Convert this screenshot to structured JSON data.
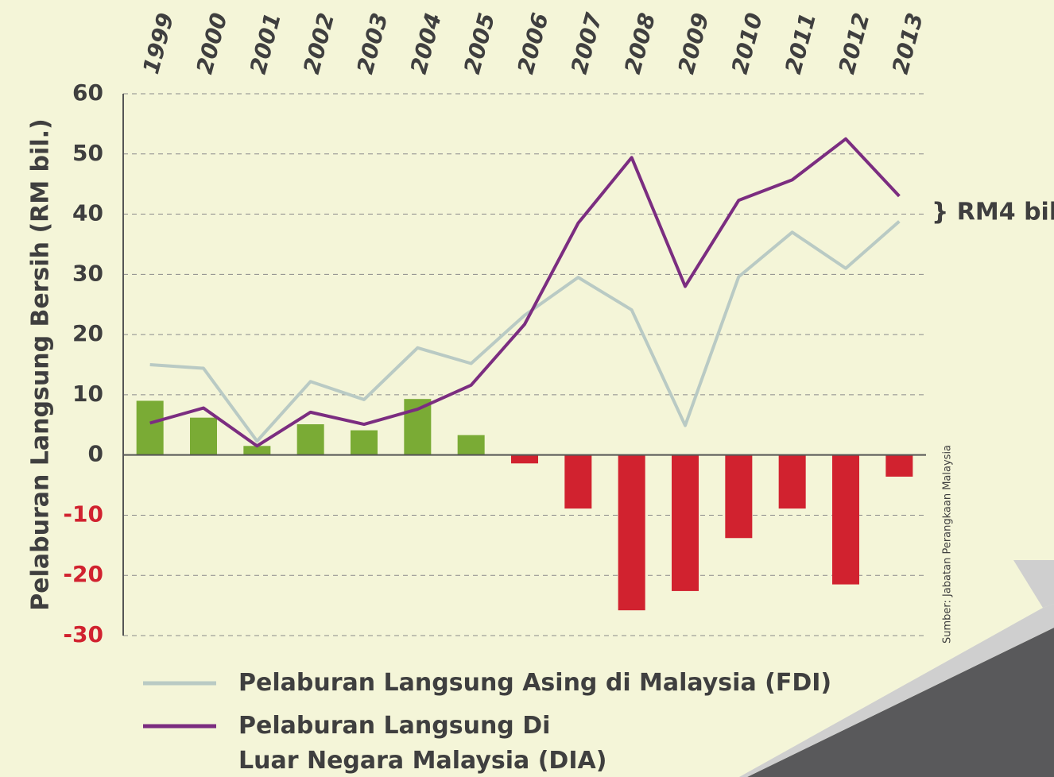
{
  "chart_data": {
    "type": "bar_line",
    "y_axis_label": "Pelaburan Langsung Bersih (RM bil.)",
    "annotation": "} RM4 bil",
    "source": "Sumber: Jabatan Perangkaan Malaysia",
    "categories": [
      "1999",
      "2000",
      "2001",
      "2002",
      "2003",
      "2004",
      "2005",
      "2006",
      "2007",
      "2008",
      "2009",
      "2010",
      "2011",
      "2012",
      "2013"
    ],
    "values": [
      9.0,
      6.2,
      1.5,
      5.1,
      4.1,
      9.3,
      3.3,
      -1.4,
      -8.9,
      -25.8,
      -22.6,
      -13.8,
      -8.9,
      -21.5,
      -3.6
    ],
    "positive_color": "#7aab35",
    "negative_color": "#d1222f",
    "series": [
      {
        "name": "Pelaburan Langsung Asing di Malaysia (FDI)",
        "color": "#b9cac4",
        "values": [
          15.0,
          14.4,
          2.3,
          12.2,
          9.2,
          17.8,
          15.2,
          23.2,
          29.5,
          24.1,
          4.9,
          29.6,
          37.0,
          31.0,
          38.8
        ]
      },
      {
        "name": "Pelaburan Langsung Di Luar Negara Malaysia (DIA)",
        "color": "#7b2d80",
        "values": [
          5.3,
          7.8,
          1.5,
          7.1,
          5.1,
          7.6,
          11.6,
          21.7,
          38.5,
          49.4,
          28.0,
          42.3,
          45.7,
          52.5,
          43.0
        ]
      }
    ],
    "ylim": [
      -30,
      60
    ],
    "yticks": [
      60,
      50,
      40,
      30,
      20,
      10,
      0,
      -10,
      -20,
      -30
    ],
    "grid": true
  }
}
